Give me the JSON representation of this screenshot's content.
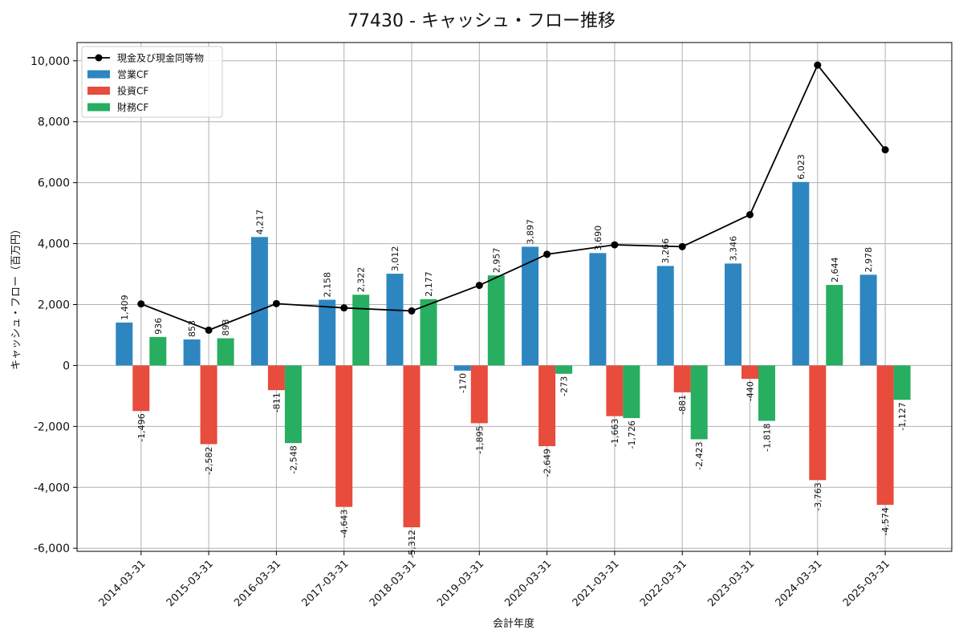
{
  "chart_data": {
    "type": "bar",
    "title": "77430 - キャッシュ・フロー推移",
    "xlabel": "会計年度",
    "ylabel": "キャッシュ・フロー（百万円）",
    "ylim": [
      -6100,
      10600
    ],
    "yticks": [
      -6000,
      -4000,
      -2000,
      0,
      2000,
      4000,
      6000,
      8000,
      10000
    ],
    "ytick_labels": [
      "-6,000",
      "-4,000",
      "-2,000",
      "0",
      "2,000",
      "4,000",
      "6,000",
      "8,000",
      "10,000"
    ],
    "grid": true,
    "legend_position": "top-left",
    "categories": [
      "2014-03-31",
      "2015-03-31",
      "2016-03-31",
      "2017-03-31",
      "2018-03-31",
      "2019-03-31",
      "2020-03-31",
      "2021-03-31",
      "2022-03-31",
      "2023-03-31",
      "2024-03-31",
      "2025-03-31"
    ],
    "series": [
      {
        "name": "営業CF",
        "kind": "bar",
        "color": "#2e86c1",
        "values": [
          1409,
          853,
          4217,
          2158,
          3012,
          -170,
          3897,
          3690,
          3266,
          3346,
          6023,
          2978
        ],
        "labels": [
          "1,409",
          "853",
          "4,217",
          "2,158",
          "3,012",
          "-170",
          "3,897",
          "3,690",
          "3,266",
          "3,346",
          "6,023",
          "2,978"
        ]
      },
      {
        "name": "投資CF",
        "kind": "bar",
        "color": "#e74c3c",
        "values": [
          -1496,
          -2582,
          -811,
          -4643,
          -5312,
          -1895,
          -2649,
          -1663,
          -881,
          -440,
          -3763,
          -4574
        ],
        "labels": [
          "-1,496",
          "-2,582",
          "-811",
          "-4,643",
          "-5,312",
          "-1,895",
          "-2,649",
          "-1,663",
          "-881",
          "-440",
          "-3,763",
          "-4,574"
        ]
      },
      {
        "name": "財務CF",
        "kind": "bar",
        "color": "#27ae60",
        "values": [
          936,
          893,
          -2548,
          2322,
          2177,
          2957,
          -273,
          -1726,
          -2423,
          -1818,
          2644,
          -1127
        ],
        "labels": [
          "936",
          "893",
          "-2,548",
          "2,322",
          "2,177",
          "2,957",
          "-273",
          "-1,726",
          "-2,423",
          "-1,818",
          "2,644",
          "-1,127"
        ]
      },
      {
        "name": "現金及び現金同等物",
        "kind": "line",
        "color": "#000000",
        "values": [
          2020,
          1160,
          2030,
          1890,
          1790,
          2630,
          3650,
          3960,
          3900,
          4950,
          9860,
          7080
        ]
      }
    ]
  }
}
